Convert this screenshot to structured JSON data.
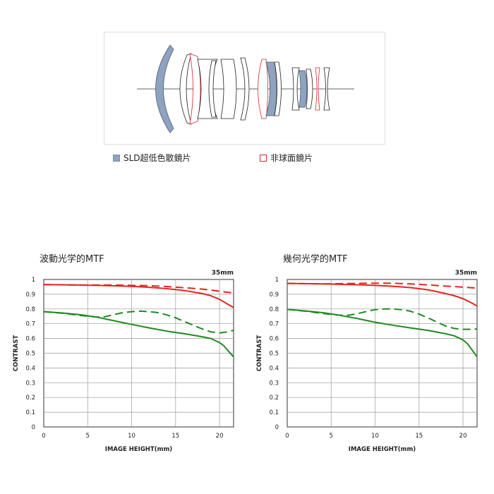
{
  "legend": {
    "sld_label": "SLD超低色散鏡片",
    "aspherical_label": "非球面鏡片",
    "sld_color": "#8fa3c0",
    "aspherical_color": "#d9262c"
  },
  "chart_data": [
    {
      "type": "line",
      "title": "波動光学的MTF",
      "focal_length": "35mm",
      "xlabel": "IMAGE HEIGHT(mm)",
      "ylabel": "CONTRAST",
      "xlim": [
        0,
        21.6
      ],
      "ylim": [
        0,
        1
      ],
      "xticks": [
        "0",
        "5",
        "10",
        "15",
        "20"
      ],
      "yticks": [
        "0",
        "0.1",
        "0.2",
        "0.3",
        "0.4",
        "0.5",
        "0.6",
        "0.7",
        "0.8",
        "0.9",
        "1"
      ],
      "grid": true,
      "series": [
        {
          "color": "#e3261f",
          "dash": false,
          "x": [
            0,
            2,
            4,
            6,
            8,
            10,
            12,
            14,
            16,
            18,
            19,
            20,
            21,
            21.6
          ],
          "values": [
            0.965,
            0.964,
            0.962,
            0.96,
            0.957,
            0.953,
            0.947,
            0.938,
            0.925,
            0.905,
            0.89,
            0.865,
            0.83,
            0.81
          ]
        },
        {
          "color": "#e3261f",
          "dash": true,
          "x": [
            0,
            4,
            8,
            12,
            14,
            16,
            18,
            19,
            20,
            21,
            21.6
          ],
          "values": [
            0.965,
            0.962,
            0.962,
            0.958,
            0.952,
            0.944,
            0.935,
            0.928,
            0.92,
            0.913,
            0.908
          ]
        },
        {
          "color": "#1f8a1f",
          "dash": false,
          "x": [
            0,
            2,
            4,
            6,
            8,
            10,
            12,
            14,
            16,
            18,
            19,
            20,
            20.5,
            21,
            21.6
          ],
          "values": [
            0.782,
            0.773,
            0.762,
            0.745,
            0.72,
            0.695,
            0.672,
            0.65,
            0.632,
            0.612,
            0.6,
            0.572,
            0.55,
            0.515,
            0.475
          ]
        },
        {
          "color": "#1f8a1f",
          "dash": true,
          "x": [
            0,
            2,
            4,
            6,
            7,
            8,
            9,
            10,
            11,
            12,
            13,
            14,
            15,
            16,
            17,
            18,
            19,
            20,
            21,
            21.6
          ],
          "values": [
            0.782,
            0.772,
            0.757,
            0.745,
            0.748,
            0.762,
            0.775,
            0.782,
            0.785,
            0.782,
            0.775,
            0.76,
            0.74,
            0.715,
            0.69,
            0.665,
            0.645,
            0.638,
            0.645,
            0.655
          ]
        }
      ]
    },
    {
      "type": "line",
      "title": "幾何光学的MTF",
      "focal_length": "35mm",
      "xlabel": "IMAGE HEIGHT(mm)",
      "ylabel": "CONTRAST",
      "xlim": [
        0,
        21.6
      ],
      "ylim": [
        0,
        1
      ],
      "xticks": [
        "0",
        "5",
        "10",
        "15",
        "20"
      ],
      "yticks": [
        "0",
        "0.1",
        "0.2",
        "0.3",
        "0.4",
        "0.5",
        "0.6",
        "0.7",
        "0.8",
        "0.9",
        "1"
      ],
      "grid": true,
      "series": [
        {
          "color": "#e3261f",
          "dash": false,
          "x": [
            0,
            2,
            4,
            6,
            8,
            10,
            12,
            14,
            16,
            18,
            19,
            20,
            21,
            21.6
          ],
          "values": [
            0.973,
            0.972,
            0.97,
            0.967,
            0.964,
            0.96,
            0.954,
            0.945,
            0.93,
            0.905,
            0.89,
            0.87,
            0.84,
            0.82
          ]
        },
        {
          "color": "#e3261f",
          "dash": true,
          "x": [
            0,
            4,
            8,
            10,
            12,
            14,
            16,
            18,
            19,
            20,
            21,
            21.6
          ],
          "values": [
            0.973,
            0.97,
            0.973,
            0.975,
            0.974,
            0.97,
            0.963,
            0.955,
            0.952,
            0.948,
            0.944,
            0.941
          ]
        },
        {
          "color": "#1f8a1f",
          "dash": false,
          "x": [
            0,
            2,
            4,
            6,
            8,
            10,
            12,
            14,
            16,
            18,
            19,
            20,
            20.5,
            21,
            21.6
          ],
          "values": [
            0.797,
            0.787,
            0.775,
            0.757,
            0.735,
            0.71,
            0.69,
            0.672,
            0.655,
            0.632,
            0.618,
            0.59,
            0.565,
            0.525,
            0.475
          ]
        },
        {
          "color": "#1f8a1f",
          "dash": true,
          "x": [
            0,
            2,
            4,
            6,
            7,
            8,
            9,
            10,
            11,
            12,
            13,
            14,
            15,
            16,
            17,
            18,
            19,
            20,
            21,
            21.6
          ],
          "values": [
            0.797,
            0.785,
            0.77,
            0.757,
            0.758,
            0.768,
            0.783,
            0.795,
            0.8,
            0.8,
            0.795,
            0.785,
            0.765,
            0.74,
            0.712,
            0.685,
            0.668,
            0.662,
            0.662,
            0.664
          ]
        }
      ]
    }
  ]
}
